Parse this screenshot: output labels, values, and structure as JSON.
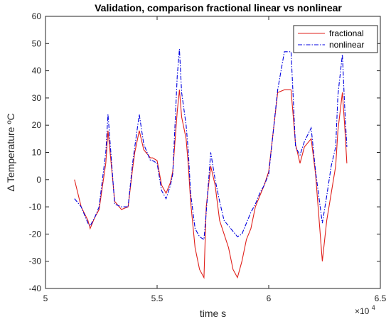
{
  "chart_data": {
    "type": "line",
    "title": "Validation, comparison fractional linear vs nonlinear",
    "xlabel": "time s",
    "ylabel": "Δ Temperature ºC",
    "x_exponent_label": "×10",
    "x_exponent_power": "4",
    "xlim": [
      5,
      6.5
    ],
    "ylim": [
      -40,
      60
    ],
    "xticks": [
      5,
      5.5,
      6,
      6.5
    ],
    "xtick_labels": [
      "5",
      "5.5",
      "6",
      "6.5"
    ],
    "yticks": [
      -40,
      -30,
      -20,
      -10,
      0,
      10,
      20,
      30,
      40,
      50,
      60
    ],
    "ytick_labels": [
      "-40",
      "-30",
      "-20",
      "-10",
      "0",
      "10",
      "20",
      "30",
      "40",
      "50",
      "60"
    ],
    "grid": false,
    "legend_position": "top-right",
    "series": [
      {
        "name": "fractional",
        "color": "#e0201b",
        "dash": "solid",
        "x": [
          5.13,
          5.16,
          5.19,
          5.2,
          5.22,
          5.24,
          5.27,
          5.28,
          5.3,
          5.31,
          5.34,
          5.37,
          5.39,
          5.4,
          5.42,
          5.44,
          5.47,
          5.48,
          5.5,
          5.52,
          5.54,
          5.56,
          5.57,
          5.59,
          5.6,
          5.61,
          5.63,
          5.64,
          5.65,
          5.67,
          5.69,
          5.71,
          5.72,
          5.74,
          5.76,
          5.78,
          5.8,
          5.82,
          5.84,
          5.86,
          5.88,
          5.9,
          5.92,
          5.94,
          5.96,
          5.98,
          6.0,
          6.04,
          6.07,
          6.1,
          6.12,
          6.14,
          6.16,
          6.19,
          6.21,
          6.24,
          6.26,
          6.28,
          6.3,
          6.31,
          6.33,
          6.34,
          6.35,
          6.37,
          6.39,
          6.4,
          6.41
        ],
        "y": [
          0,
          -10,
          -15,
          -18,
          -14,
          -11,
          6,
          18,
          1,
          -8,
          -11,
          -10,
          4,
          10,
          18,
          11,
          8,
          8,
          7,
          -2,
          -5,
          -1,
          3,
          25,
          33,
          23,
          15,
          5,
          -8,
          -25,
          -33,
          -36,
          -10,
          5,
          -2,
          -15,
          -20,
          -25,
          -33,
          -36,
          -30,
          -22,
          -18,
          -10,
          -6,
          -2,
          3,
          32,
          33,
          33,
          13,
          6,
          12,
          15,
          2,
          -30,
          -15,
          -5,
          5,
          18,
          32,
          20,
          6,
          null,
          null,
          null,
          null
        ]
      },
      {
        "name": "nonlinear",
        "color": "#0000e0",
        "dash": "dashdot",
        "x": [
          5.13,
          5.16,
          5.19,
          5.2,
          5.22,
          5.24,
          5.27,
          5.28,
          5.3,
          5.31,
          5.34,
          5.37,
          5.39,
          5.4,
          5.42,
          5.44,
          5.47,
          5.48,
          5.5,
          5.52,
          5.54,
          5.56,
          5.57,
          5.59,
          5.6,
          5.61,
          5.63,
          5.64,
          5.65,
          5.67,
          5.69,
          5.71,
          5.72,
          5.74,
          5.76,
          5.78,
          5.8,
          5.82,
          5.84,
          5.86,
          5.88,
          5.9,
          5.92,
          5.94,
          5.96,
          5.98,
          6.0,
          6.04,
          6.07,
          6.1,
          6.12,
          6.14,
          6.16,
          6.19,
          6.21,
          6.24,
          6.26,
          6.28,
          6.3,
          6.31,
          6.33,
          6.34,
          6.35,
          6.37,
          6.39,
          6.4,
          6.41
        ],
        "y": [
          -7,
          -10,
          -16,
          -17,
          -14,
          -10,
          10,
          24,
          2,
          -9,
          -10,
          -10,
          6,
          12,
          24,
          13,
          7,
          7,
          6,
          -4,
          -7,
          -2,
          2,
          38,
          48,
          32,
          20,
          10,
          -5,
          -18,
          -21,
          -22,
          -12,
          10,
          0,
          -8,
          -15,
          -17,
          -19,
          -21,
          -20,
          -16,
          -12,
          -9,
          -5,
          -2,
          2,
          33,
          47,
          47,
          12,
          9,
          14,
          19,
          3,
          -16,
          -6,
          5,
          12,
          31,
          46,
          27,
          12,
          null,
          null,
          null,
          null
        ]
      }
    ]
  }
}
